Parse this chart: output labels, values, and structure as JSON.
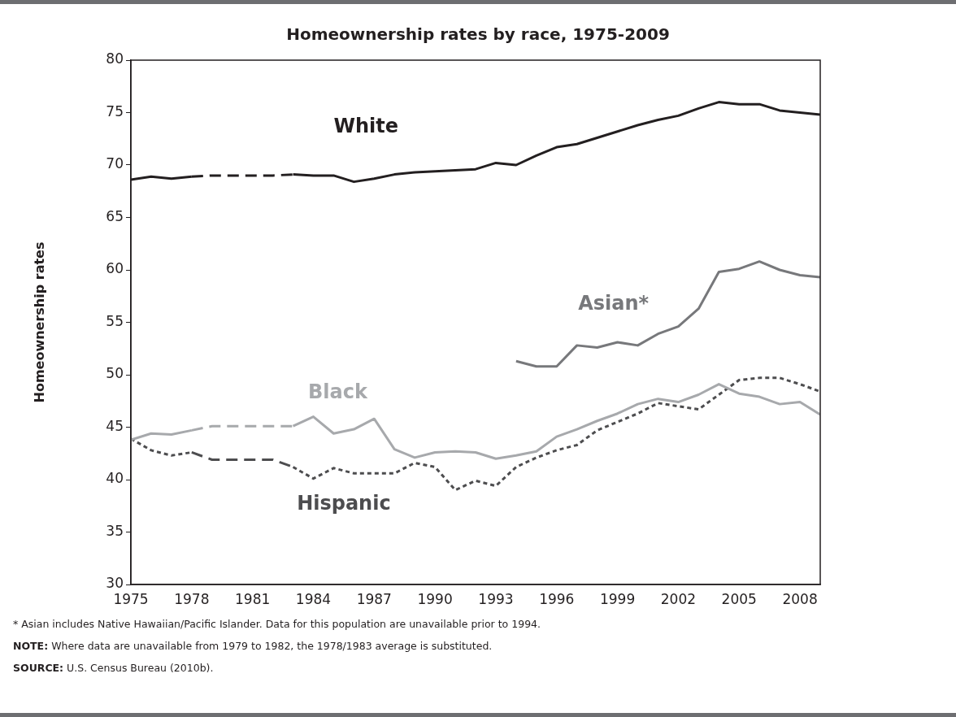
{
  "chart_data": {
    "type": "line",
    "title": "Homeownership rates by race, 1975-2009",
    "ylabel": "Homeownership rates",
    "xlim": [
      1975,
      2009
    ],
    "xticks": [
      1975,
      1978,
      1981,
      1984,
      1987,
      1990,
      1993,
      1996,
      1999,
      2002,
      2005,
      2008
    ],
    "ylim": [
      30,
      80
    ],
    "yticks": [
      30,
      35,
      40,
      45,
      50,
      55,
      60,
      65,
      70,
      75,
      80
    ],
    "grid": false,
    "legend": false,
    "marker": "none",
    "series": [
      {
        "name": "White",
        "color": "#231f20",
        "line_style": [
          "solid",
          "solid",
          "solid",
          "dashed",
          "dashed",
          "dashed",
          "dashed",
          "dashed",
          "solid",
          "solid",
          "solid",
          "solid",
          "solid",
          "solid",
          "solid",
          "solid",
          "solid",
          "solid",
          "solid",
          "solid",
          "solid",
          "solid",
          "solid",
          "solid",
          "solid",
          "solid",
          "solid",
          "solid",
          "solid",
          "solid",
          "solid",
          "solid",
          "solid",
          "solid"
        ],
        "x": [
          1975,
          1976,
          1977,
          1978,
          1979,
          1980,
          1981,
          1982,
          1983,
          1984,
          1985,
          1986,
          1987,
          1988,
          1989,
          1990,
          1991,
          1992,
          1993,
          1994,
          1995,
          1996,
          1997,
          1998,
          1999,
          2000,
          2001,
          2002,
          2003,
          2004,
          2005,
          2006,
          2007,
          2008,
          2009
        ],
        "values": [
          68.6,
          68.9,
          68.7,
          68.9,
          69.0,
          69.0,
          69.0,
          69.0,
          69.1,
          69.0,
          69.0,
          68.4,
          68.7,
          69.1,
          69.3,
          69.4,
          69.5,
          69.6,
          70.2,
          70.0,
          70.9,
          71.7,
          72.0,
          72.6,
          73.2,
          73.8,
          74.3,
          74.7,
          75.4,
          76.0,
          75.8,
          75.8,
          75.2,
          75.0,
          74.8
        ]
      },
      {
        "name": "Asian*",
        "color": "#77787b",
        "line_style": "solid",
        "x": [
          1994,
          1995,
          1996,
          1997,
          1998,
          1999,
          2000,
          2001,
          2002,
          2003,
          2004,
          2005,
          2006,
          2007,
          2008,
          2009
        ],
        "values": [
          51.3,
          50.8,
          50.8,
          52.8,
          52.6,
          53.1,
          52.8,
          53.9,
          54.6,
          56.3,
          59.8,
          60.1,
          60.8,
          60.0,
          59.5,
          59.3
        ]
      },
      {
        "name": "Black",
        "color": "#a7a9ac",
        "line_style": [
          "solid",
          "solid",
          "solid",
          "dashed",
          "dashed",
          "dashed",
          "dashed",
          "dashed",
          "solid",
          "solid",
          "solid",
          "solid",
          "solid",
          "solid",
          "solid",
          "solid",
          "solid",
          "solid",
          "solid",
          "solid",
          "solid",
          "solid",
          "solid",
          "solid",
          "solid",
          "solid",
          "solid",
          "solid",
          "solid",
          "solid",
          "solid",
          "solid",
          "solid",
          "solid"
        ],
        "x": [
          1975,
          1976,
          1977,
          1978,
          1979,
          1980,
          1981,
          1982,
          1983,
          1984,
          1985,
          1986,
          1987,
          1988,
          1989,
          1990,
          1991,
          1992,
          1993,
          1994,
          1995,
          1996,
          1997,
          1998,
          1999,
          2000,
          2001,
          2002,
          2003,
          2004,
          2005,
          2006,
          2007,
          2008,
          2009
        ],
        "values": [
          43.8,
          44.4,
          44.3,
          44.7,
          45.1,
          45.1,
          45.1,
          45.1,
          45.1,
          46.0,
          44.4,
          44.8,
          45.8,
          42.9,
          42.1,
          42.6,
          42.7,
          42.6,
          42.0,
          42.3,
          42.7,
          44.1,
          44.8,
          45.6,
          46.3,
          47.2,
          47.7,
          47.4,
          48.1,
          49.1,
          48.2,
          47.9,
          47.2,
          47.4,
          46.2
        ]
      },
      {
        "name": "Hispanic",
        "color": "#4d4d4f",
        "line_style": [
          "dotted",
          "dotted",
          "dotted",
          "dashed",
          "dashed",
          "dashed",
          "dashed",
          "dashed",
          "dotted",
          "dotted",
          "dotted",
          "dotted",
          "dotted",
          "dotted",
          "dotted",
          "dotted",
          "dotted",
          "dotted",
          "dotted",
          "dotted",
          "dotted",
          "dotted",
          "dotted",
          "dotted",
          "dotted",
          "dotted",
          "dotted",
          "dotted",
          "dotted",
          "dotted",
          "dotted",
          "dotted",
          "dotted",
          "dotted"
        ],
        "x": [
          1975,
          1976,
          1977,
          1978,
          1979,
          1980,
          1981,
          1982,
          1983,
          1984,
          1985,
          1986,
          1987,
          1988,
          1989,
          1990,
          1991,
          1992,
          1993,
          1994,
          1995,
          1996,
          1997,
          1998,
          1999,
          2000,
          2001,
          2002,
          2003,
          2004,
          2005,
          2006,
          2007,
          2008,
          2009
        ],
        "values": [
          43.9,
          42.8,
          42.3,
          42.6,
          41.9,
          41.9,
          41.9,
          41.9,
          41.2,
          40.1,
          41.1,
          40.6,
          40.6,
          40.6,
          41.6,
          41.2,
          39.0,
          39.9,
          39.4,
          41.2,
          42.1,
          42.8,
          43.3,
          44.7,
          45.5,
          46.3,
          47.3,
          47.0,
          46.7,
          48.1,
          49.5,
          49.7,
          49.7,
          49.1,
          48.4
        ]
      }
    ],
    "annotations": [
      "* Asian includes Native Hawaiian/Pacific Islander. Data for this population are unavailable prior to 1994.",
      "NOTE: Where data are unavailable from 1979 to 1982, the 1978/1983 average is substituted.",
      "SOURCE: U.S. Census Bureau (2010b)."
    ]
  }
}
